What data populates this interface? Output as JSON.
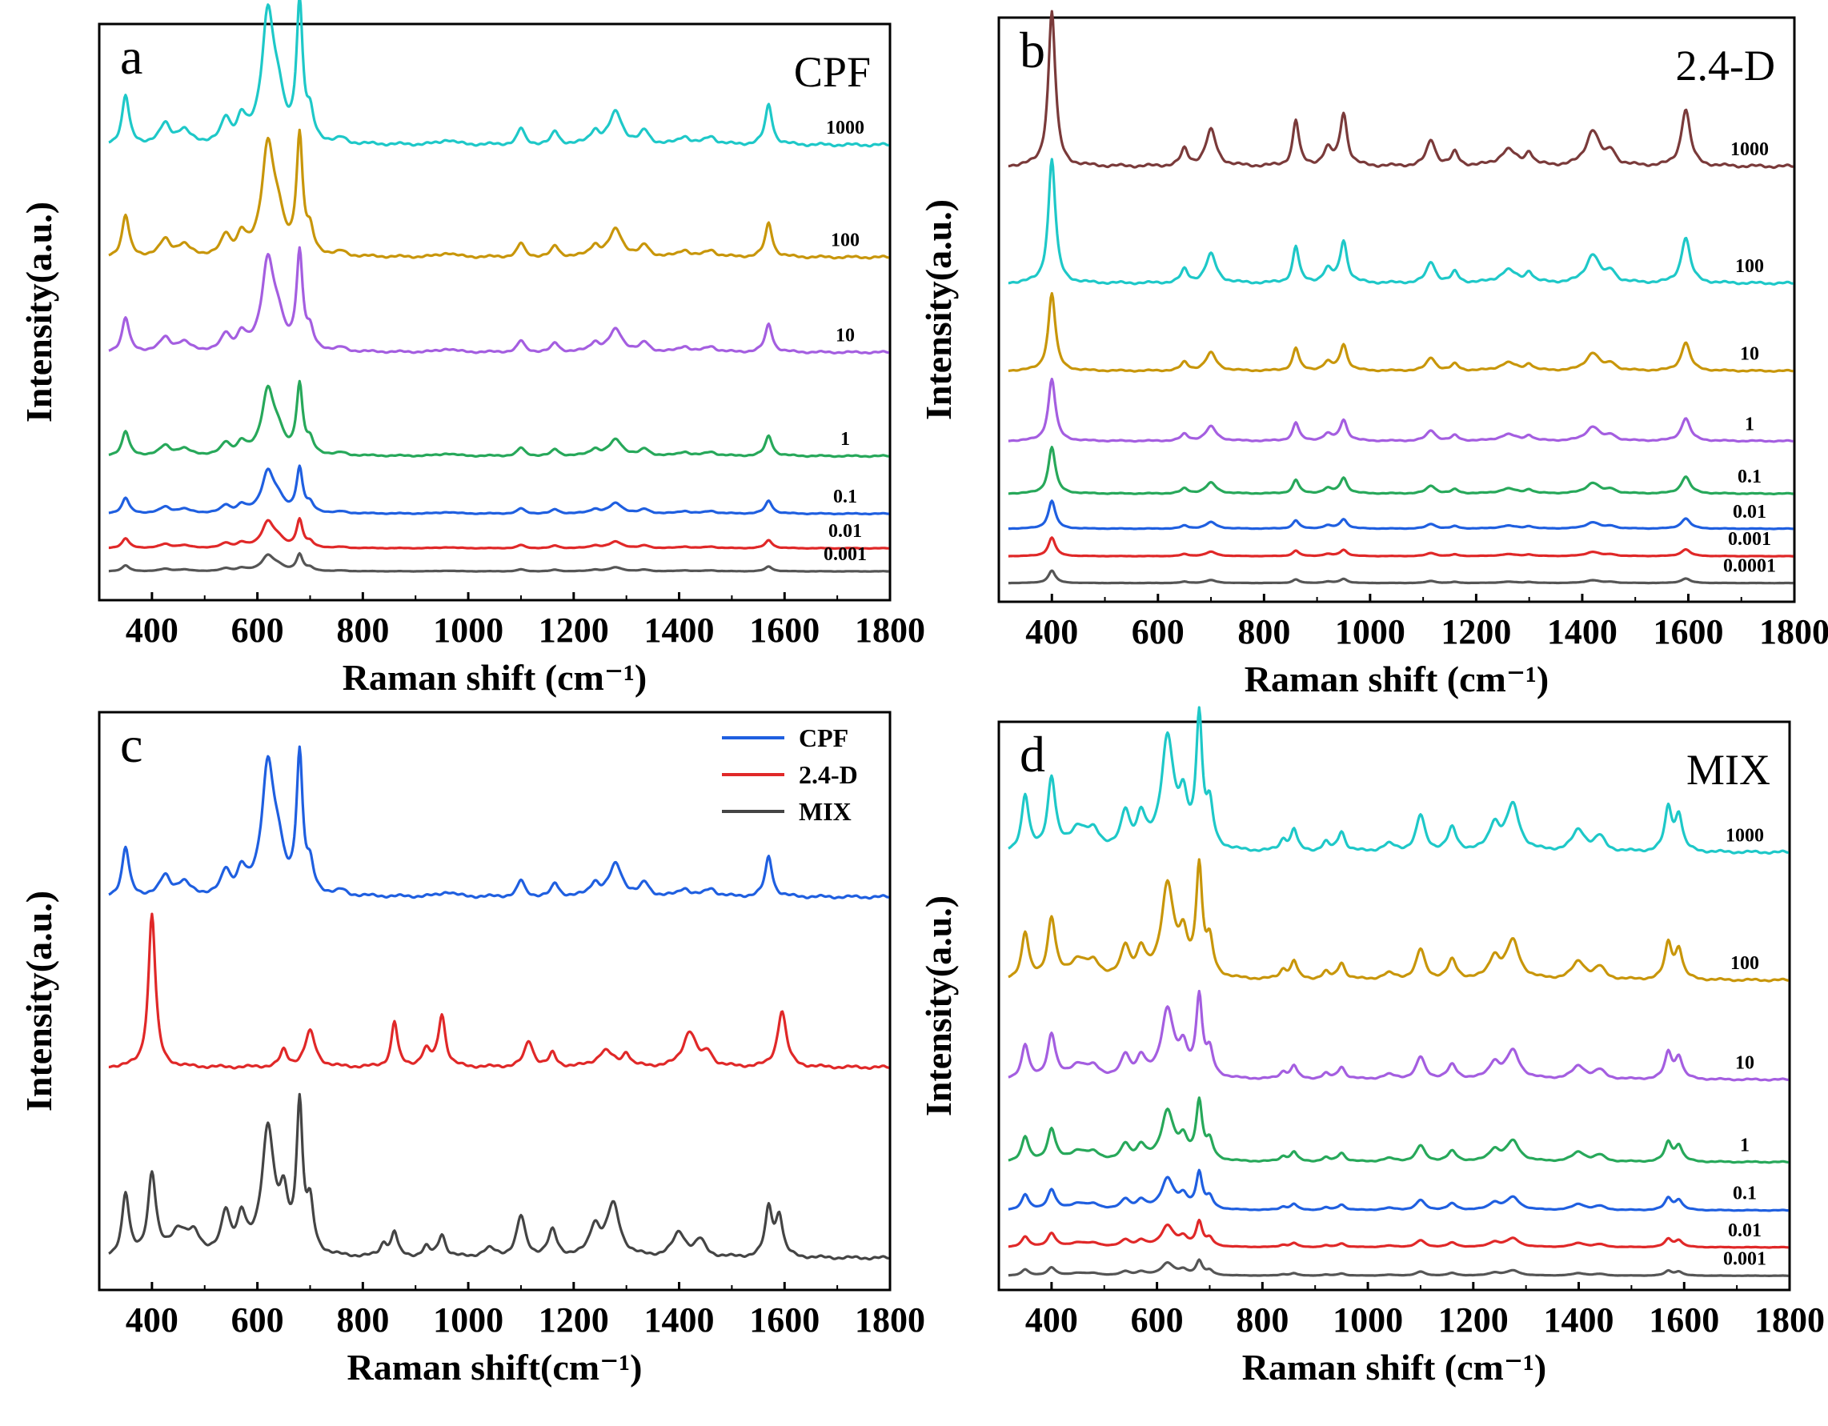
{
  "chart_data": [
    {
      "type": "line",
      "panel_label": "a",
      "title": "CPF",
      "xlabel": "Raman shift (cm⁻¹)",
      "ylabel": "Intensity(a.u.)",
      "xlim": [
        300,
        1800
      ],
      "xticks": [
        400,
        600,
        800,
        1000,
        1200,
        1400,
        1600,
        1800
      ],
      "grid": false,
      "profile": "cpf",
      "series": [
        {
          "name": "1000",
          "color": "#1ec8c8",
          "scale": 1.0,
          "baseline": 0.79
        },
        {
          "name": "100",
          "color": "#c8960a",
          "scale": 0.85,
          "baseline": 0.595
        },
        {
          "name": "10",
          "color": "#a45ee0",
          "scale": 0.7,
          "baseline": 0.43
        },
        {
          "name": "1",
          "color": "#27a85a",
          "scale": 0.5,
          "baseline": 0.25
        },
        {
          "name": "0.1",
          "color": "#1f5fe0",
          "scale": 0.32,
          "baseline": 0.15
        },
        {
          "name": "0.01",
          "color": "#e02828",
          "scale": 0.2,
          "baseline": 0.09
        },
        {
          "name": "0.001",
          "color": "#555555",
          "scale": 0.12,
          "baseline": 0.05
        }
      ]
    },
    {
      "type": "line",
      "panel_label": "b",
      "title": "2.4-D",
      "xlabel": "Raman shift (cm⁻¹)",
      "ylabel": "Intensity(a.u.)",
      "xlim": [
        300,
        1800
      ],
      "xticks": [
        400,
        600,
        800,
        1000,
        1200,
        1400,
        1600,
        1800
      ],
      "grid": false,
      "profile": "d24",
      "series": [
        {
          "name": "1000",
          "color": "#7a3a3a",
          "scale": 1.0,
          "baseline": 0.745
        },
        {
          "name": "100",
          "color": "#1ec8c8",
          "scale": 0.8,
          "baseline": 0.545
        },
        {
          "name": "10",
          "color": "#c8960a",
          "scale": 0.5,
          "baseline": 0.395
        },
        {
          "name": "1",
          "color": "#a45ee0",
          "scale": 0.4,
          "baseline": 0.275
        },
        {
          "name": "0.1",
          "color": "#27a85a",
          "scale": 0.3,
          "baseline": 0.185
        },
        {
          "name": "0.01",
          "color": "#1f5fe0",
          "scale": 0.18,
          "baseline": 0.125
        },
        {
          "name": "0.001",
          "color": "#e02828",
          "scale": 0.12,
          "baseline": 0.078
        },
        {
          "name": "0.0001",
          "color": "#555555",
          "scale": 0.08,
          "baseline": 0.032
        }
      ]
    },
    {
      "type": "line",
      "panel_label": "c",
      "title": "",
      "xlabel": "Raman shift(cm⁻¹)",
      "ylabel": "Intensity(a.u.)",
      "xlim": [
        300,
        1800
      ],
      "xticks": [
        400,
        600,
        800,
        1000,
        1200,
        1400,
        1600,
        1800
      ],
      "grid": false,
      "legend_position": "top-right",
      "series": [
        {
          "name": "CPF",
          "color": "#1f5fe0",
          "profile": "cpf",
          "scale": 1.0,
          "baseline": 0.68
        },
        {
          "name": "2.4-D",
          "color": "#e02828",
          "profile": "d24",
          "scale": 1.0,
          "baseline": 0.385
        },
        {
          "name": "MIX",
          "color": "#444444",
          "profile": "mix",
          "scale": 1.0,
          "baseline": 0.055
        }
      ]
    },
    {
      "type": "line",
      "panel_label": "d",
      "title": "MIX",
      "xlabel": "Raman shift (cm⁻¹)",
      "ylabel": "Intensity(a.u.)",
      "xlim": [
        300,
        1800
      ],
      "xticks": [
        400,
        600,
        800,
        1000,
        1200,
        1400,
        1600,
        1800
      ],
      "grid": false,
      "profile": "mix",
      "series": [
        {
          "name": "1000",
          "color": "#1ec8c8",
          "scale": 0.9,
          "baseline": 0.77
        },
        {
          "name": "100",
          "color": "#c8960a",
          "scale": 0.75,
          "baseline": 0.545
        },
        {
          "name": "10",
          "color": "#a45ee0",
          "scale": 0.55,
          "baseline": 0.37
        },
        {
          "name": "1",
          "color": "#27a85a",
          "scale": 0.4,
          "baseline": 0.225
        },
        {
          "name": "0.1",
          "color": "#1f5fe0",
          "scale": 0.25,
          "baseline": 0.14
        },
        {
          "name": "0.01",
          "color": "#e02828",
          "scale": 0.17,
          "baseline": 0.075
        },
        {
          "name": "0.001",
          "color": "#555555",
          "scale": 0.1,
          "baseline": 0.025
        }
      ]
    }
  ],
  "peak_profiles": {
    "cpf": [
      [
        350,
        0.3,
        8
      ],
      [
        425,
        0.12,
        12
      ],
      [
        460,
        0.08,
        15
      ],
      [
        540,
        0.14,
        10
      ],
      [
        570,
        0.14,
        10
      ],
      [
        620,
        0.8,
        14
      ],
      [
        640,
        0.2,
        12
      ],
      [
        680,
        0.85,
        7
      ],
      [
        700,
        0.15,
        8
      ],
      [
        760,
        0.03,
        10
      ],
      [
        960,
        0.03,
        15
      ],
      [
        1100,
        0.1,
        8
      ],
      [
        1165,
        0.08,
        8
      ],
      [
        1240,
        0.08,
        10
      ],
      [
        1280,
        0.2,
        15
      ],
      [
        1335,
        0.08,
        10
      ],
      [
        1410,
        0.05,
        12
      ],
      [
        1460,
        0.05,
        12
      ],
      [
        1570,
        0.25,
        8
      ]
    ],
    "d24": [
      [
        400,
        0.95,
        8
      ],
      [
        650,
        0.1,
        8
      ],
      [
        700,
        0.22,
        12
      ],
      [
        860,
        0.28,
        7
      ],
      [
        920,
        0.1,
        10
      ],
      [
        950,
        0.32,
        8
      ],
      [
        1115,
        0.16,
        10
      ],
      [
        1160,
        0.08,
        8
      ],
      [
        1260,
        0.1,
        18
      ],
      [
        1300,
        0.08,
        8
      ],
      [
        1420,
        0.22,
        15
      ],
      [
        1455,
        0.08,
        10
      ],
      [
        1595,
        0.35,
        10
      ]
    ],
    "mix": [
      [
        350,
        0.38,
        8
      ],
      [
        400,
        0.5,
        9
      ],
      [
        450,
        0.15,
        18
      ],
      [
        480,
        0.12,
        15
      ],
      [
        540,
        0.25,
        10
      ],
      [
        570,
        0.22,
        10
      ],
      [
        620,
        0.78,
        14
      ],
      [
        650,
        0.3,
        10
      ],
      [
        680,
        0.9,
        7
      ],
      [
        700,
        0.28,
        8
      ],
      [
        840,
        0.08,
        8
      ],
      [
        860,
        0.15,
        7
      ],
      [
        920,
        0.06,
        8
      ],
      [
        950,
        0.14,
        8
      ],
      [
        1040,
        0.05,
        15
      ],
      [
        1100,
        0.25,
        10
      ],
      [
        1160,
        0.16,
        10
      ],
      [
        1240,
        0.18,
        12
      ],
      [
        1275,
        0.32,
        15
      ],
      [
        1400,
        0.15,
        15
      ],
      [
        1440,
        0.1,
        12
      ],
      [
        1570,
        0.3,
        8
      ],
      [
        1590,
        0.25,
        8
      ]
    ]
  }
}
